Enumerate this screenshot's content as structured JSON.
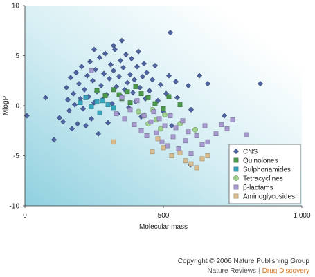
{
  "chart_data": {
    "type": "scatter",
    "xlabel": "Molecular mass",
    "ylabel": "MlogP",
    "xlim": [
      0,
      1000
    ],
    "ylim": [
      -10,
      10
    ],
    "xticks": [
      "0",
      "500",
      "1,000"
    ],
    "yticks": [
      "10",
      "5",
      "0",
      "-5",
      "-10"
    ],
    "legend_position": "bottom-right",
    "grid": false,
    "series": [
      {
        "name": "CNS",
        "marker": "diamond",
        "color": "#4f65a3",
        "points": [
          [
            7,
            -1
          ],
          [
            75,
            0.8
          ],
          [
            105,
            -3.4
          ],
          [
            125,
            -1.2
          ],
          [
            138,
            -1.6
          ],
          [
            150,
            1.8
          ],
          [
            155,
            0.6
          ],
          [
            160,
            -0.5
          ],
          [
            165,
            2.8
          ],
          [
            170,
            -2.3
          ],
          [
            175,
            1.2
          ],
          [
            180,
            0.1
          ],
          [
            185,
            3.3
          ],
          [
            190,
            -1.8
          ],
          [
            195,
            2.2
          ],
          [
            200,
            0.7
          ],
          [
            205,
            3.9
          ],
          [
            210,
            -0.3
          ],
          [
            215,
            1.6
          ],
          [
            220,
            -2.0
          ],
          [
            225,
            3.0
          ],
          [
            230,
            0.9
          ],
          [
            235,
            4.4
          ],
          [
            240,
            -1.3
          ],
          [
            245,
            2.5
          ],
          [
            250,
            0.3
          ],
          [
            255,
            3.6
          ],
          [
            260,
            1.4
          ],
          [
            265,
            -2.8
          ],
          [
            270,
            4.8
          ],
          [
            275,
            2.0
          ],
          [
            280,
            0.6
          ],
          [
            285,
            3.2
          ],
          [
            290,
            5.2
          ],
          [
            295,
            1.1
          ],
          [
            300,
            -1.7
          ],
          [
            305,
            2.7
          ],
          [
            310,
            4.1
          ],
          [
            315,
            0.2
          ],
          [
            320,
            3.5
          ],
          [
            325,
            5.6
          ],
          [
            330,
            1.9
          ],
          [
            335,
            -0.8
          ],
          [
            340,
            2.9
          ],
          [
            345,
            4.5
          ],
          [
            350,
            0.9
          ],
          [
            355,
            3.8
          ],
          [
            360,
            1.6
          ],
          [
            365,
            5.1
          ],
          [
            370,
            2.3
          ],
          [
            375,
            -0.2
          ],
          [
            380,
            3.1
          ],
          [
            385,
            4.7
          ],
          [
            390,
            1.3
          ],
          [
            395,
            2.6
          ],
          [
            400,
            0.4
          ],
          [
            405,
            3.9
          ],
          [
            410,
            5.4
          ],
          [
            415,
            1.8
          ],
          [
            420,
            -1.1
          ],
          [
            425,
            2.9
          ],
          [
            430,
            4.2
          ],
          [
            435,
            0.7
          ],
          [
            440,
            3.3
          ],
          [
            450,
            1.5
          ],
          [
            460,
            2.6
          ],
          [
            470,
            4.0
          ],
          [
            480,
            0.5
          ],
          [
            490,
            2.1
          ],
          [
            500,
            -0.6
          ],
          [
            510,
            1.2
          ],
          [
            520,
            3.0
          ],
          [
            525,
            7.3
          ],
          [
            530,
            -2.0
          ],
          [
            545,
            2.4
          ],
          [
            550,
            0.8
          ],
          [
            590,
            2.0
          ],
          [
            600,
            -0.4
          ],
          [
            630,
            3.0
          ],
          [
            660,
            2.2
          ],
          [
            720,
            -1.0
          ],
          [
            850,
            2.2
          ],
          [
            598,
            -5.9
          ],
          [
            320,
            6.0
          ],
          [
            250,
            5.6
          ],
          [
            350,
            6.5
          ]
        ]
      },
      {
        "name": "Quinolones",
        "marker": "square",
        "color": "#4a9a4a",
        "points": [
          [
            260,
            1.5
          ],
          [
            290,
            1.0
          ],
          [
            320,
            1.6
          ],
          [
            340,
            1.1
          ],
          [
            350,
            0.7
          ],
          [
            370,
            1.4
          ],
          [
            380,
            0.3
          ],
          [
            400,
            1.9
          ],
          [
            420,
            1.2
          ],
          [
            445,
            0.8
          ],
          [
            470,
            0.2
          ],
          [
            500,
            -0.3
          ],
          [
            520,
            0.9
          ],
          [
            560,
            0.1
          ]
        ]
      },
      {
        "name": "Sulphonamides",
        "marker": "square",
        "color": "#3aa7c0",
        "points": [
          [
            200,
            0.3
          ],
          [
            220,
            0.8
          ],
          [
            240,
            -0.1
          ],
          [
            260,
            0.4
          ],
          [
            270,
            -0.7
          ],
          [
            280,
            0.5
          ],
          [
            300,
            0.1
          ],
          [
            320,
            -0.2
          ]
        ]
      },
      {
        "name": "Tetracyclines",
        "marker": "circle",
        "color": "#9fd08c",
        "points": [
          [
            410,
            -0.6
          ],
          [
            430,
            -1.0
          ],
          [
            445,
            -1.8
          ],
          [
            460,
            -0.4
          ],
          [
            475,
            -1.4
          ],
          [
            490,
            -2.3
          ],
          [
            505,
            -0.9
          ],
          [
            560,
            -1.8
          ],
          [
            615,
            -2.4
          ]
        ]
      },
      {
        "name": "β-lactams",
        "marker": "square",
        "color": "#a79ad0",
        "points": [
          [
            240,
            3.5
          ],
          [
            330,
            -0.8
          ],
          [
            350,
            0.8
          ],
          [
            360,
            -1.3
          ],
          [
            380,
            -0.4
          ],
          [
            395,
            -1.9
          ],
          [
            405,
            0.5
          ],
          [
            420,
            -2.5
          ],
          [
            430,
            -1.0
          ],
          [
            440,
            -3.0
          ],
          [
            455,
            -1.6
          ],
          [
            465,
            -0.6
          ],
          [
            475,
            -2.7
          ],
          [
            485,
            -1.3
          ],
          [
            495,
            -3.6
          ],
          [
            505,
            -2.0
          ],
          [
            515,
            -4.0
          ],
          [
            525,
            -1.0
          ],
          [
            535,
            -3.1
          ],
          [
            545,
            -2.2
          ],
          [
            555,
            -4.3
          ],
          [
            570,
            -1.5
          ],
          [
            580,
            -3.5
          ],
          [
            590,
            -2.6
          ],
          [
            600,
            -4.8
          ],
          [
            620,
            -3.0
          ],
          [
            640,
            -3.9
          ],
          [
            650,
            -2.0
          ],
          [
            660,
            -3.6
          ],
          [
            690,
            -2.8
          ],
          [
            710,
            -1.9
          ],
          [
            730,
            -2.3
          ],
          [
            750,
            -1.4
          ],
          [
            800,
            -2.9
          ]
        ]
      },
      {
        "name": "Aminoglycosides",
        "marker": "square",
        "color": "#d8bc8f",
        "points": [
          [
            320,
            -3.6
          ],
          [
            460,
            -4.6
          ],
          [
            480,
            -3.3
          ],
          [
            500,
            -4.2
          ],
          [
            530,
            -5.0
          ],
          [
            560,
            -4.7
          ],
          [
            580,
            -5.5
          ],
          [
            600,
            -5.8
          ],
          [
            620,
            -6.2
          ],
          [
            640,
            -5.3
          ],
          [
            660,
            -5.0
          ]
        ]
      }
    ]
  },
  "footer": {
    "copyright": "Copyright © 2006 Nature Publishing Group",
    "journal": "Nature Reviews",
    "separator": "|",
    "section": "Drug Discovery"
  }
}
